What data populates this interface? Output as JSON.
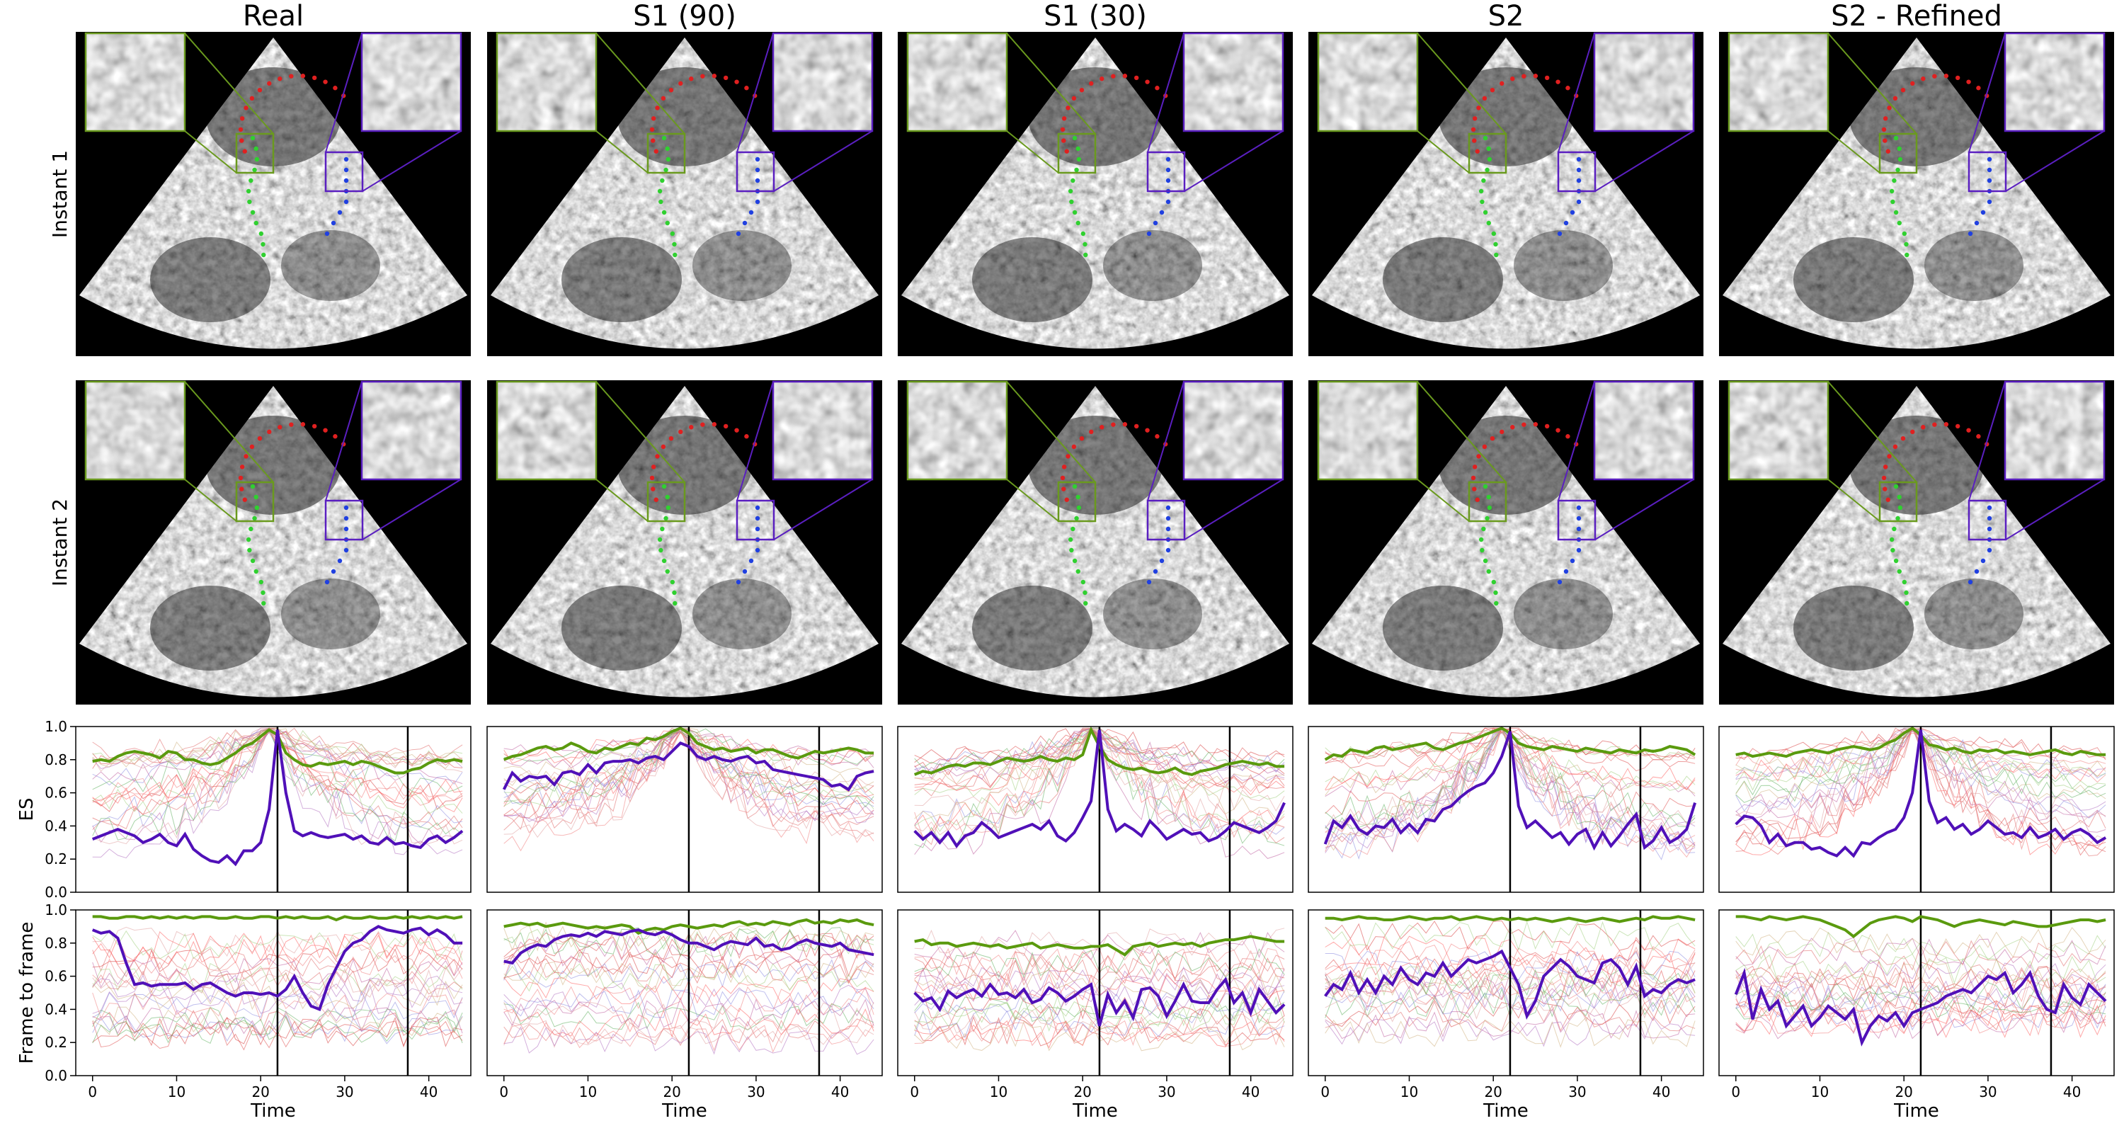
{
  "columns": [
    {
      "title": "Real"
    },
    {
      "title": "S1 (90)"
    },
    {
      "title": "S1 (30)"
    },
    {
      "title": "S2"
    },
    {
      "title": "S2 - Refined"
    }
  ],
  "row_labels": [
    "Instant 1",
    "Instant 2"
  ],
  "colors": {
    "green_box": "#6a9a1e",
    "purple_box": "#5a1fc0",
    "red_points": "#e02020",
    "green_points": "#30d030",
    "blue_points": "#2040e0",
    "highlight_green": "#5a9a0e",
    "highlight_purple": "#5010b8"
  },
  "chart_data": [
    {
      "type": "line",
      "ylabel": "ES",
      "xlabel": "Time",
      "ylim": [
        0,
        1.0
      ],
      "xlim": [
        -2,
        45
      ],
      "yticks": [
        "0.0",
        "0.2",
        "0.4",
        "0.6",
        "0.8",
        "1.0"
      ],
      "xticks": [
        "0",
        "10",
        "20",
        "30",
        "40"
      ],
      "panels": [
        {
          "column": "Real",
          "vlines": [
            22,
            37.5
          ],
          "green": [
            0.79,
            0.8,
            0.79,
            0.82,
            0.84,
            0.85,
            0.84,
            0.83,
            0.81,
            0.85,
            0.84,
            0.8,
            0.8,
            0.78,
            0.77,
            0.78,
            0.81,
            0.84,
            0.88,
            0.9,
            0.94,
            0.98,
            0.95,
            0.84,
            0.8,
            0.77,
            0.76,
            0.78,
            0.77,
            0.78,
            0.79,
            0.77,
            0.79,
            0.78,
            0.76,
            0.74,
            0.72,
            0.72,
            0.74,
            0.75,
            0.78,
            0.8,
            0.79,
            0.8,
            0.79
          ],
          "purple": [
            0.32,
            0.34,
            0.36,
            0.38,
            0.36,
            0.34,
            0.3,
            0.32,
            0.35,
            0.3,
            0.28,
            0.35,
            0.26,
            0.22,
            0.19,
            0.18,
            0.22,
            0.17,
            0.25,
            0.25,
            0.3,
            0.5,
            0.98,
            0.6,
            0.37,
            0.34,
            0.36,
            0.34,
            0.33,
            0.34,
            0.35,
            0.32,
            0.34,
            0.3,
            0.29,
            0.33,
            0.29,
            0.3,
            0.28,
            0.27,
            0.32,
            0.34,
            0.3,
            0.33,
            0.37
          ]
        },
        {
          "column": "S1 (90)",
          "vlines": [
            22,
            37.5
          ],
          "green": [
            0.8,
            0.82,
            0.83,
            0.85,
            0.87,
            0.88,
            0.86,
            0.87,
            0.9,
            0.88,
            0.85,
            0.84,
            0.87,
            0.86,
            0.88,
            0.9,
            0.89,
            0.93,
            0.92,
            0.94,
            0.97,
            0.99,
            0.96,
            0.9,
            0.88,
            0.86,
            0.87,
            0.85,
            0.86,
            0.87,
            0.84,
            0.86,
            0.86,
            0.84,
            0.82,
            0.81,
            0.83,
            0.85,
            0.84,
            0.85,
            0.86,
            0.87,
            0.86,
            0.84,
            0.84
          ],
          "purple": [
            0.62,
            0.72,
            0.67,
            0.7,
            0.69,
            0.7,
            0.65,
            0.72,
            0.73,
            0.71,
            0.77,
            0.72,
            0.78,
            0.79,
            0.79,
            0.8,
            0.78,
            0.81,
            0.82,
            0.8,
            0.85,
            0.9,
            0.88,
            0.82,
            0.8,
            0.82,
            0.8,
            0.79,
            0.81,
            0.82,
            0.78,
            0.79,
            0.74,
            0.73,
            0.72,
            0.71,
            0.7,
            0.69,
            0.68,
            0.64,
            0.65,
            0.62,
            0.7,
            0.72,
            0.73
          ]
        },
        {
          "column": "S1 (30)",
          "vlines": [
            22,
            37.5
          ],
          "green": [
            0.71,
            0.73,
            0.72,
            0.74,
            0.76,
            0.77,
            0.76,
            0.78,
            0.78,
            0.77,
            0.79,
            0.81,
            0.8,
            0.79,
            0.8,
            0.82,
            0.8,
            0.79,
            0.81,
            0.8,
            0.83,
            0.98,
            0.88,
            0.8,
            0.77,
            0.75,
            0.74,
            0.75,
            0.73,
            0.72,
            0.73,
            0.75,
            0.72,
            0.71,
            0.73,
            0.74,
            0.75,
            0.77,
            0.78,
            0.79,
            0.78,
            0.77,
            0.78,
            0.76,
            0.76
          ],
          "purple": [
            0.37,
            0.32,
            0.36,
            0.3,
            0.36,
            0.28,
            0.34,
            0.36,
            0.42,
            0.38,
            0.33,
            0.35,
            0.37,
            0.39,
            0.41,
            0.38,
            0.43,
            0.34,
            0.31,
            0.36,
            0.45,
            0.55,
            0.98,
            0.5,
            0.37,
            0.41,
            0.38,
            0.34,
            0.43,
            0.38,
            0.32,
            0.35,
            0.38,
            0.35,
            0.36,
            0.31,
            0.33,
            0.37,
            0.42,
            0.4,
            0.38,
            0.36,
            0.39,
            0.43,
            0.54
          ]
        },
        {
          "column": "S2",
          "vlines": [
            22,
            37.5
          ],
          "green": [
            0.8,
            0.83,
            0.82,
            0.86,
            0.85,
            0.84,
            0.87,
            0.88,
            0.86,
            0.87,
            0.88,
            0.89,
            0.9,
            0.87,
            0.86,
            0.88,
            0.9,
            0.91,
            0.93,
            0.95,
            0.97,
            0.99,
            0.96,
            0.9,
            0.88,
            0.87,
            0.86,
            0.88,
            0.87,
            0.86,
            0.85,
            0.87,
            0.86,
            0.85,
            0.84,
            0.86,
            0.85,
            0.84,
            0.86,
            0.85,
            0.86,
            0.88,
            0.87,
            0.86,
            0.83
          ],
          "purple": [
            0.29,
            0.43,
            0.39,
            0.46,
            0.38,
            0.35,
            0.4,
            0.39,
            0.44,
            0.36,
            0.41,
            0.36,
            0.44,
            0.43,
            0.5,
            0.52,
            0.57,
            0.61,
            0.64,
            0.66,
            0.72,
            0.82,
            0.97,
            0.52,
            0.39,
            0.43,
            0.38,
            0.33,
            0.36,
            0.29,
            0.35,
            0.38,
            0.27,
            0.36,
            0.28,
            0.34,
            0.41,
            0.47,
            0.27,
            0.31,
            0.39,
            0.3,
            0.33,
            0.38,
            0.54
          ]
        },
        {
          "column": "S2 - Refined",
          "vlines": [
            22,
            37.5
          ],
          "green": [
            0.83,
            0.84,
            0.82,
            0.83,
            0.84,
            0.83,
            0.82,
            0.84,
            0.85,
            0.86,
            0.85,
            0.84,
            0.86,
            0.87,
            0.88,
            0.87,
            0.86,
            0.87,
            0.9,
            0.92,
            0.96,
            0.99,
            0.95,
            0.89,
            0.88,
            0.86,
            0.87,
            0.85,
            0.84,
            0.86,
            0.85,
            0.86,
            0.84,
            0.85,
            0.84,
            0.83,
            0.84,
            0.85,
            0.86,
            0.84,
            0.83,
            0.85,
            0.84,
            0.83,
            0.83
          ],
          "purple": [
            0.41,
            0.46,
            0.45,
            0.4,
            0.3,
            0.35,
            0.28,
            0.3,
            0.3,
            0.26,
            0.27,
            0.24,
            0.22,
            0.27,
            0.22,
            0.3,
            0.29,
            0.33,
            0.36,
            0.38,
            0.45,
            0.6,
            0.98,
            0.55,
            0.42,
            0.45,
            0.38,
            0.41,
            0.35,
            0.38,
            0.43,
            0.39,
            0.35,
            0.36,
            0.33,
            0.39,
            0.33,
            0.35,
            0.38,
            0.32,
            0.36,
            0.38,
            0.35,
            0.3,
            0.33
          ]
        }
      ]
    },
    {
      "type": "line",
      "ylabel": "Frame to frame",
      "xlabel": "Time",
      "ylim": [
        0,
        1.0
      ],
      "xlim": [
        -2,
        45
      ],
      "yticks": [
        "0.0",
        "0.2",
        "0.4",
        "0.6",
        "0.8",
        "1.0"
      ],
      "xticks": [
        "0",
        "10",
        "20",
        "30",
        "40"
      ],
      "panels": [
        {
          "column": "Real",
          "vlines": [
            22,
            37.5
          ],
          "green": [
            0.96,
            0.96,
            0.95,
            0.95,
            0.96,
            0.96,
            0.95,
            0.96,
            0.95,
            0.96,
            0.95,
            0.96,
            0.95,
            0.96,
            0.96,
            0.95,
            0.95,
            0.96,
            0.95,
            0.95,
            0.96,
            0.96,
            0.95,
            0.96,
            0.95,
            0.96,
            0.95,
            0.95,
            0.96,
            0.94,
            0.96,
            0.95,
            0.95,
            0.96,
            0.95,
            0.95,
            0.96,
            0.95,
            0.96,
            0.95,
            0.96,
            0.95,
            0.96,
            0.95,
            0.96
          ],
          "purple": [
            0.88,
            0.86,
            0.87,
            0.83,
            0.68,
            0.55,
            0.56,
            0.54,
            0.55,
            0.55,
            0.55,
            0.56,
            0.52,
            0.55,
            0.56,
            0.53,
            0.5,
            0.48,
            0.5,
            0.5,
            0.49,
            0.5,
            0.48,
            0.52,
            0.6,
            0.5,
            0.42,
            0.4,
            0.55,
            0.65,
            0.75,
            0.8,
            0.82,
            0.87,
            0.9,
            0.88,
            0.87,
            0.86,
            0.88,
            0.89,
            0.85,
            0.88,
            0.85,
            0.8,
            0.8
          ]
        },
        {
          "column": "S1 (90)",
          "vlines": [
            22,
            37.5
          ],
          "green": [
            0.9,
            0.91,
            0.92,
            0.91,
            0.92,
            0.9,
            0.91,
            0.92,
            0.91,
            0.9,
            0.89,
            0.9,
            0.89,
            0.9,
            0.91,
            0.9,
            0.86,
            0.88,
            0.89,
            0.88,
            0.9,
            0.91,
            0.9,
            0.89,
            0.9,
            0.91,
            0.9,
            0.92,
            0.93,
            0.91,
            0.92,
            0.91,
            0.93,
            0.92,
            0.91,
            0.93,
            0.94,
            0.92,
            0.93,
            0.92,
            0.94,
            0.93,
            0.94,
            0.92,
            0.91
          ],
          "purple": [
            0.69,
            0.68,
            0.74,
            0.77,
            0.79,
            0.78,
            0.82,
            0.84,
            0.85,
            0.84,
            0.86,
            0.84,
            0.87,
            0.86,
            0.85,
            0.87,
            0.88,
            0.86,
            0.85,
            0.87,
            0.85,
            0.82,
            0.8,
            0.8,
            0.78,
            0.76,
            0.79,
            0.81,
            0.8,
            0.79,
            0.83,
            0.78,
            0.79,
            0.76,
            0.77,
            0.8,
            0.82,
            0.8,
            0.79,
            0.78,
            0.8,
            0.76,
            0.75,
            0.74,
            0.73
          ]
        },
        {
          "column": "S1 (30)",
          "vlines": [
            22,
            37.5
          ],
          "green": [
            0.81,
            0.82,
            0.79,
            0.8,
            0.8,
            0.78,
            0.79,
            0.8,
            0.79,
            0.78,
            0.79,
            0.77,
            0.78,
            0.79,
            0.8,
            0.77,
            0.78,
            0.79,
            0.78,
            0.77,
            0.77,
            0.78,
            0.78,
            0.79,
            0.76,
            0.73,
            0.78,
            0.79,
            0.8,
            0.78,
            0.79,
            0.8,
            0.79,
            0.8,
            0.78,
            0.8,
            0.81,
            0.82,
            0.82,
            0.83,
            0.84,
            0.83,
            0.82,
            0.81,
            0.81
          ],
          "purple": [
            0.5,
            0.45,
            0.47,
            0.4,
            0.51,
            0.47,
            0.5,
            0.52,
            0.48,
            0.55,
            0.49,
            0.5,
            0.47,
            0.52,
            0.44,
            0.46,
            0.53,
            0.5,
            0.45,
            0.48,
            0.52,
            0.55,
            0.3,
            0.49,
            0.38,
            0.45,
            0.35,
            0.52,
            0.53,
            0.48,
            0.36,
            0.45,
            0.55,
            0.45,
            0.44,
            0.44,
            0.52,
            0.58,
            0.44,
            0.5,
            0.38,
            0.52,
            0.45,
            0.38,
            0.43
          ]
        },
        {
          "column": "S2",
          "vlines": [
            22,
            37.5
          ],
          "green": [
            0.95,
            0.95,
            0.94,
            0.95,
            0.96,
            0.95,
            0.95,
            0.94,
            0.94,
            0.95,
            0.96,
            0.95,
            0.94,
            0.95,
            0.95,
            0.96,
            0.94,
            0.95,
            0.96,
            0.95,
            0.94,
            0.95,
            0.94,
            0.95,
            0.94,
            0.95,
            0.94,
            0.93,
            0.94,
            0.95,
            0.94,
            0.93,
            0.94,
            0.95,
            0.94,
            0.93,
            0.94,
            0.95,
            0.94,
            0.96,
            0.95,
            0.95,
            0.96,
            0.95,
            0.94
          ],
          "purple": [
            0.48,
            0.55,
            0.52,
            0.62,
            0.5,
            0.58,
            0.5,
            0.6,
            0.55,
            0.65,
            0.58,
            0.55,
            0.62,
            0.6,
            0.68,
            0.6,
            0.65,
            0.7,
            0.68,
            0.7,
            0.72,
            0.75,
            0.65,
            0.55,
            0.36,
            0.45,
            0.6,
            0.65,
            0.7,
            0.66,
            0.6,
            0.58,
            0.56,
            0.68,
            0.7,
            0.65,
            0.55,
            0.66,
            0.48,
            0.52,
            0.5,
            0.55,
            0.58,
            0.56,
            0.58
          ]
        },
        {
          "column": "S2 - Refined",
          "vlines": [
            22,
            37.5
          ],
          "green": [
            0.96,
            0.96,
            0.95,
            0.94,
            0.96,
            0.95,
            0.94,
            0.95,
            0.96,
            0.95,
            0.94,
            0.92,
            0.9,
            0.88,
            0.84,
            0.88,
            0.92,
            0.94,
            0.95,
            0.96,
            0.95,
            0.93,
            0.96,
            0.95,
            0.94,
            0.92,
            0.9,
            0.92,
            0.93,
            0.94,
            0.93,
            0.92,
            0.91,
            0.93,
            0.92,
            0.91,
            0.9,
            0.9,
            0.91,
            0.92,
            0.93,
            0.94,
            0.94,
            0.93,
            0.94
          ],
          "purple": [
            0.49,
            0.62,
            0.34,
            0.52,
            0.4,
            0.45,
            0.3,
            0.36,
            0.42,
            0.3,
            0.35,
            0.42,
            0.38,
            0.34,
            0.4,
            0.2,
            0.3,
            0.36,
            0.33,
            0.38,
            0.3,
            0.38,
            0.4,
            0.42,
            0.44,
            0.48,
            0.5,
            0.52,
            0.5,
            0.55,
            0.6,
            0.58,
            0.62,
            0.5,
            0.55,
            0.62,
            0.48,
            0.4,
            0.38,
            0.55,
            0.47,
            0.43,
            0.55,
            0.5,
            0.45
          ]
        }
      ]
    }
  ]
}
